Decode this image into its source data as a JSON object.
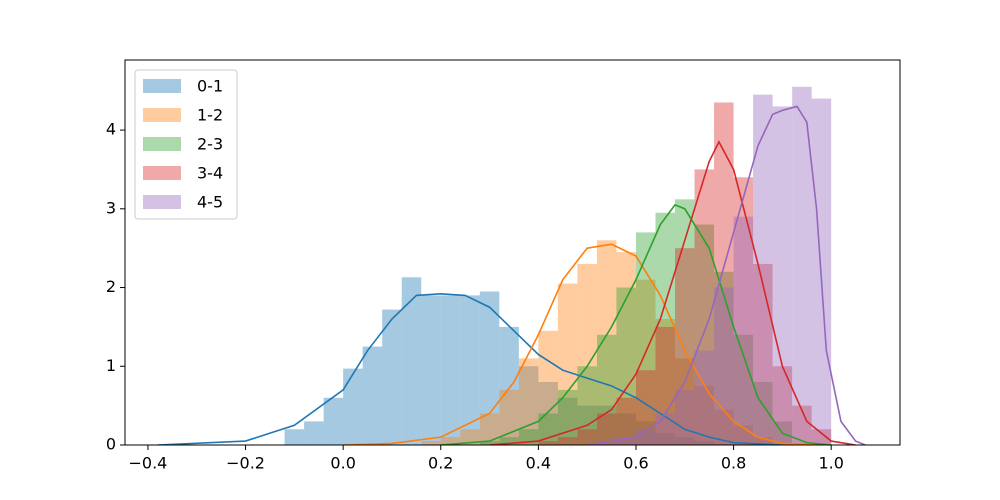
{
  "chart_data": {
    "type": "histogram",
    "legend": "upper left",
    "xlim": [
      -0.447,
      1.141
    ],
    "ylim": [
      0,
      4.89
    ],
    "xticks": [
      {
        "value": -0.4,
        "label": "−0.4"
      },
      {
        "value": -0.2,
        "label": "−0.2"
      },
      {
        "value": 0,
        "label": "0.0"
      },
      0.2,
      0.4,
      0.6,
      0.8,
      {
        "value": 1,
        "label": "1.0"
      }
    ],
    "yticks": [
      0,
      1,
      2,
      3,
      4
    ],
    "series": [
      {
        "name": "0-1",
        "color": "#1f77b4",
        "bins": [
          -0.12,
          -0.08,
          -0.04,
          0,
          0.04,
          0.08,
          0.12,
          0.16,
          0.2,
          0.24,
          0.28,
          0.32,
          0.36,
          0.4,
          0.44,
          0.48,
          0.52,
          0.56,
          0.6,
          0.64,
          0.68,
          0.72,
          0.76
        ],
        "values": [
          0.2,
          0.3,
          0.6,
          0.97,
          1.25,
          1.72,
          2.13,
          1.9,
          1.9,
          1.9,
          1.95,
          1.5,
          1.0,
          0.8,
          0.6,
          0.5,
          0.5,
          0.4,
          0.3,
          0.15,
          0.1,
          0.05
        ],
        "kde": {
          "x": [
            -0.38,
            -0.2,
            -0.1,
            0,
            0.05,
            0.1,
            0.15,
            0.2,
            0.25,
            0.3,
            0.35,
            0.4,
            0.45,
            0.5,
            0.55,
            0.6,
            0.65,
            0.7,
            0.75,
            0.8,
            0.9
          ],
          "y": [
            0,
            0.05,
            0.25,
            0.7,
            1.2,
            1.6,
            1.9,
            1.92,
            1.9,
            1.75,
            1.45,
            1.15,
            0.95,
            0.85,
            0.75,
            0.6,
            0.4,
            0.2,
            0.1,
            0.03,
            0
          ]
        }
      },
      {
        "name": "1-2",
        "color": "#ff7f0e",
        "bins": [
          0.16,
          0.2,
          0.24,
          0.28,
          0.32,
          0.36,
          0.4,
          0.44,
          0.48,
          0.52,
          0.56,
          0.6,
          0.64,
          0.68,
          0.72,
          0.76,
          0.8,
          0.84,
          0.88
        ],
        "values": [
          0.05,
          0.1,
          0.2,
          0.4,
          0.7,
          1.1,
          1.45,
          2.05,
          2.3,
          2.6,
          2.45,
          2.1,
          1.6,
          1.1,
          0.75,
          0.45,
          0.25,
          0.1
        ],
        "kde": {
          "x": [
            0,
            0.1,
            0.2,
            0.3,
            0.35,
            0.4,
            0.45,
            0.5,
            0.55,
            0.6,
            0.65,
            0.7,
            0.75,
            0.8,
            0.85,
            0.9,
            1
          ],
          "y": [
            0,
            0.02,
            0.1,
            0.4,
            0.8,
            1.4,
            2.1,
            2.5,
            2.55,
            2.4,
            1.9,
            1.2,
            0.65,
            0.3,
            0.1,
            0.02,
            0
          ]
        }
      },
      {
        "name": "2-3",
        "color": "#2ca02c",
        "bins": [
          0.28,
          0.32,
          0.36,
          0.4,
          0.44,
          0.48,
          0.52,
          0.56,
          0.6,
          0.64,
          0.68,
          0.72,
          0.76,
          0.8,
          0.84,
          0.88,
          0.92
        ],
        "values": [
          0.05,
          0.1,
          0.2,
          0.4,
          0.7,
          1.0,
          1.4,
          2.0,
          2.7,
          2.95,
          3.12,
          2.8,
          2.2,
          1.4,
          0.8,
          0.3
        ],
        "kde": {
          "x": [
            0.2,
            0.3,
            0.4,
            0.45,
            0.5,
            0.55,
            0.6,
            0.65,
            0.68,
            0.7,
            0.75,
            0.8,
            0.85,
            0.9,
            0.95,
            1
          ],
          "y": [
            0,
            0.05,
            0.3,
            0.6,
            1.0,
            1.5,
            2.1,
            2.8,
            3.05,
            3.0,
            2.5,
            1.5,
            0.6,
            0.15,
            0.03,
            0
          ]
        }
      },
      {
        "name": "3-4",
        "color": "#d62728",
        "bins": [
          0.4,
          0.44,
          0.48,
          0.52,
          0.56,
          0.6,
          0.64,
          0.68,
          0.72,
          0.76,
          0.8,
          0.84,
          0.88,
          0.92,
          0.96,
          1
        ],
        "values": [
          0.05,
          0.1,
          0.2,
          0.4,
          0.6,
          0.95,
          1.5,
          2.5,
          3.5,
          4.35,
          3.4,
          2.3,
          1.0,
          0.5,
          0.2
        ],
        "kde": {
          "x": [
            0.3,
            0.4,
            0.5,
            0.55,
            0.6,
            0.65,
            0.7,
            0.75,
            0.77,
            0.8,
            0.85,
            0.9,
            0.95,
            1,
            1.05
          ],
          "y": [
            0,
            0.05,
            0.25,
            0.45,
            0.9,
            1.6,
            2.6,
            3.6,
            3.85,
            3.5,
            2.3,
            1.0,
            0.3,
            0.05,
            0
          ]
        }
      },
      {
        "name": "4-5",
        "color": "#9467bd",
        "bins": [
          0.52,
          0.56,
          0.6,
          0.64,
          0.68,
          0.72,
          0.76,
          0.8,
          0.84,
          0.88,
          0.92,
          0.96,
          1
        ],
        "values": [
          0.05,
          0.1,
          0.2,
          0.4,
          0.7,
          1.2,
          2.0,
          2.9,
          4.45,
          4.3,
          4.55,
          4.4
        ],
        "kde": {
          "x": [
            0.5,
            0.6,
            0.65,
            0.7,
            0.75,
            0.8,
            0.85,
            0.88,
            0.9,
            0.93,
            0.95,
            0.97,
            0.99,
            1.02,
            1.05,
            1.07
          ],
          "y": [
            0,
            0.1,
            0.3,
            0.8,
            1.6,
            2.7,
            3.8,
            4.2,
            4.25,
            4.3,
            4.1,
            3.0,
            1.2,
            0.3,
            0.05,
            0
          ]
        }
      }
    ]
  }
}
